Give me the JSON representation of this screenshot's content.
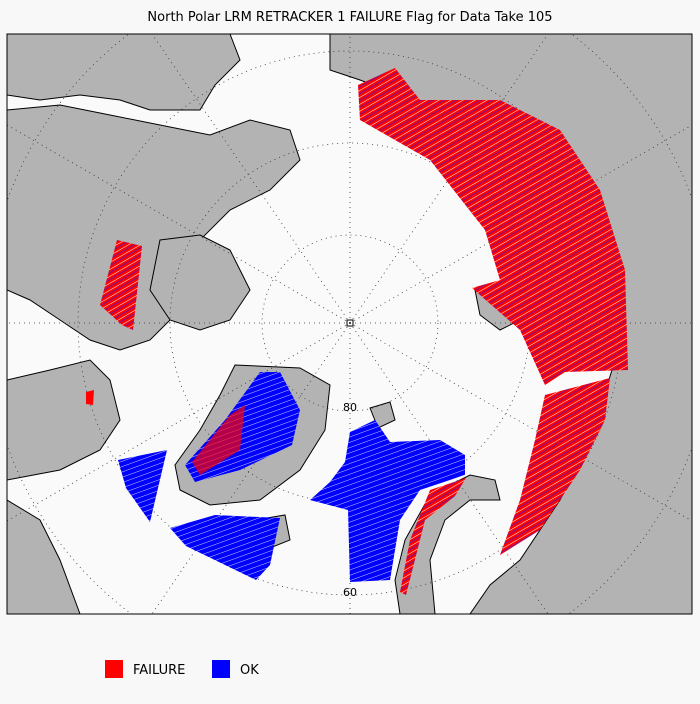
{
  "header": {
    "title": "North Polar LRM RETRACKER 1 FAILURE Flag for Data Take 105"
  },
  "map": {
    "latitude_labels": [
      "80",
      "60"
    ]
  },
  "legend": {
    "items": [
      {
        "label": "FAILURE"
      },
      {
        "label": "OK"
      }
    ]
  }
}
